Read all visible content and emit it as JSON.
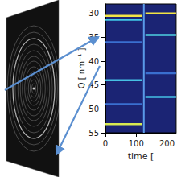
{
  "chart_data": {
    "type": "line",
    "xlabel": "time [",
    "ylabel": "Q [ nm⁻¹ ]",
    "xlim": [
      0,
      230
    ],
    "xticks": [
      0,
      100,
      200
    ],
    "ylim": [
      28,
      55
    ],
    "yticks": [
      30,
      35,
      40,
      45,
      50,
      55
    ],
    "series": [
      {
        "color": "#f2e445",
        "x": [
          0,
          120
        ],
        "values": [
          30.5,
          30.5
        ]
      },
      {
        "color": "#41c8e8",
        "x": [
          0,
          120
        ],
        "values": [
          31.3,
          31.3
        ]
      },
      {
        "color": "#3a6fd0",
        "x": [
          0,
          120
        ],
        "values": [
          36,
          36
        ]
      },
      {
        "color": "#46c0e4",
        "x": [
          0,
          120
        ],
        "values": [
          44,
          44
        ]
      },
      {
        "color": "#3a6fd0",
        "x": [
          0,
          120
        ],
        "values": [
          49,
          49
        ]
      },
      {
        "color": "#d8ea50",
        "x": [
          0,
          120
        ],
        "values": [
          53.2,
          53.2
        ]
      },
      {
        "color": "#f2e445",
        "x": [
          130,
          230
        ],
        "values": [
          30,
          30
        ]
      },
      {
        "color": "#4fd0e0",
        "x": [
          130,
          230
        ],
        "values": [
          34.5,
          34.5
        ]
      },
      {
        "color": "#3a6fd0",
        "x": [
          130,
          230
        ],
        "values": [
          42.5,
          42.5
        ]
      },
      {
        "color": "#46c0e4",
        "x": [
          130,
          230
        ],
        "values": [
          47.5,
          47.5
        ]
      },
      {
        "color": "#5a9ae8",
        "x": [
          125,
          125
        ],
        "values": [
          28,
          55
        ]
      }
    ]
  }
}
